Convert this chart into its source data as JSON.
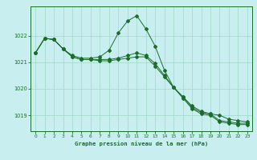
{
  "title": "Graphe pression niveau de la mer (hPa)",
  "bg_color": "#c8eef0",
  "grid_color": "#a0d8c8",
  "line_color": "#1a6e2a",
  "marker_color": "#1a6e2a",
  "xlim": [
    -0.5,
    23.5
  ],
  "ylim": [
    1018.4,
    1023.1
  ],
  "yticks": [
    1019,
    1020,
    1021,
    1022
  ],
  "xticks": [
    0,
    1,
    2,
    3,
    4,
    5,
    6,
    7,
    8,
    9,
    10,
    11,
    12,
    13,
    14,
    15,
    16,
    17,
    18,
    19,
    20,
    21,
    22,
    23
  ],
  "line1": [
    1021.35,
    1021.9,
    1021.85,
    1021.5,
    1021.25,
    1021.15,
    1021.15,
    1021.2,
    1021.45,
    1022.1,
    1022.55,
    1022.75,
    1022.25,
    1021.6,
    1020.7,
    1020.05,
    1019.7,
    1019.35,
    1019.15,
    1019.05,
    1019.0,
    1018.85,
    1018.8,
    1018.75
  ],
  "line2": [
    1021.35,
    1021.9,
    1021.85,
    1021.5,
    1021.2,
    1021.1,
    1021.1,
    1021.05,
    1021.05,
    1021.1,
    1021.15,
    1021.2,
    1021.2,
    1020.85,
    1020.45,
    1020.05,
    1019.7,
    1019.3,
    1019.1,
    1019.05,
    1018.8,
    1018.75,
    1018.7,
    1018.7
  ],
  "line3": [
    1021.35,
    1021.9,
    1021.85,
    1021.5,
    1021.2,
    1021.1,
    1021.1,
    1021.1,
    1021.1,
    1021.15,
    1021.25,
    1021.35,
    1021.25,
    1020.95,
    1020.5,
    1020.05,
    1019.65,
    1019.25,
    1019.05,
    1019.0,
    1018.75,
    1018.7,
    1018.65,
    1018.65
  ]
}
